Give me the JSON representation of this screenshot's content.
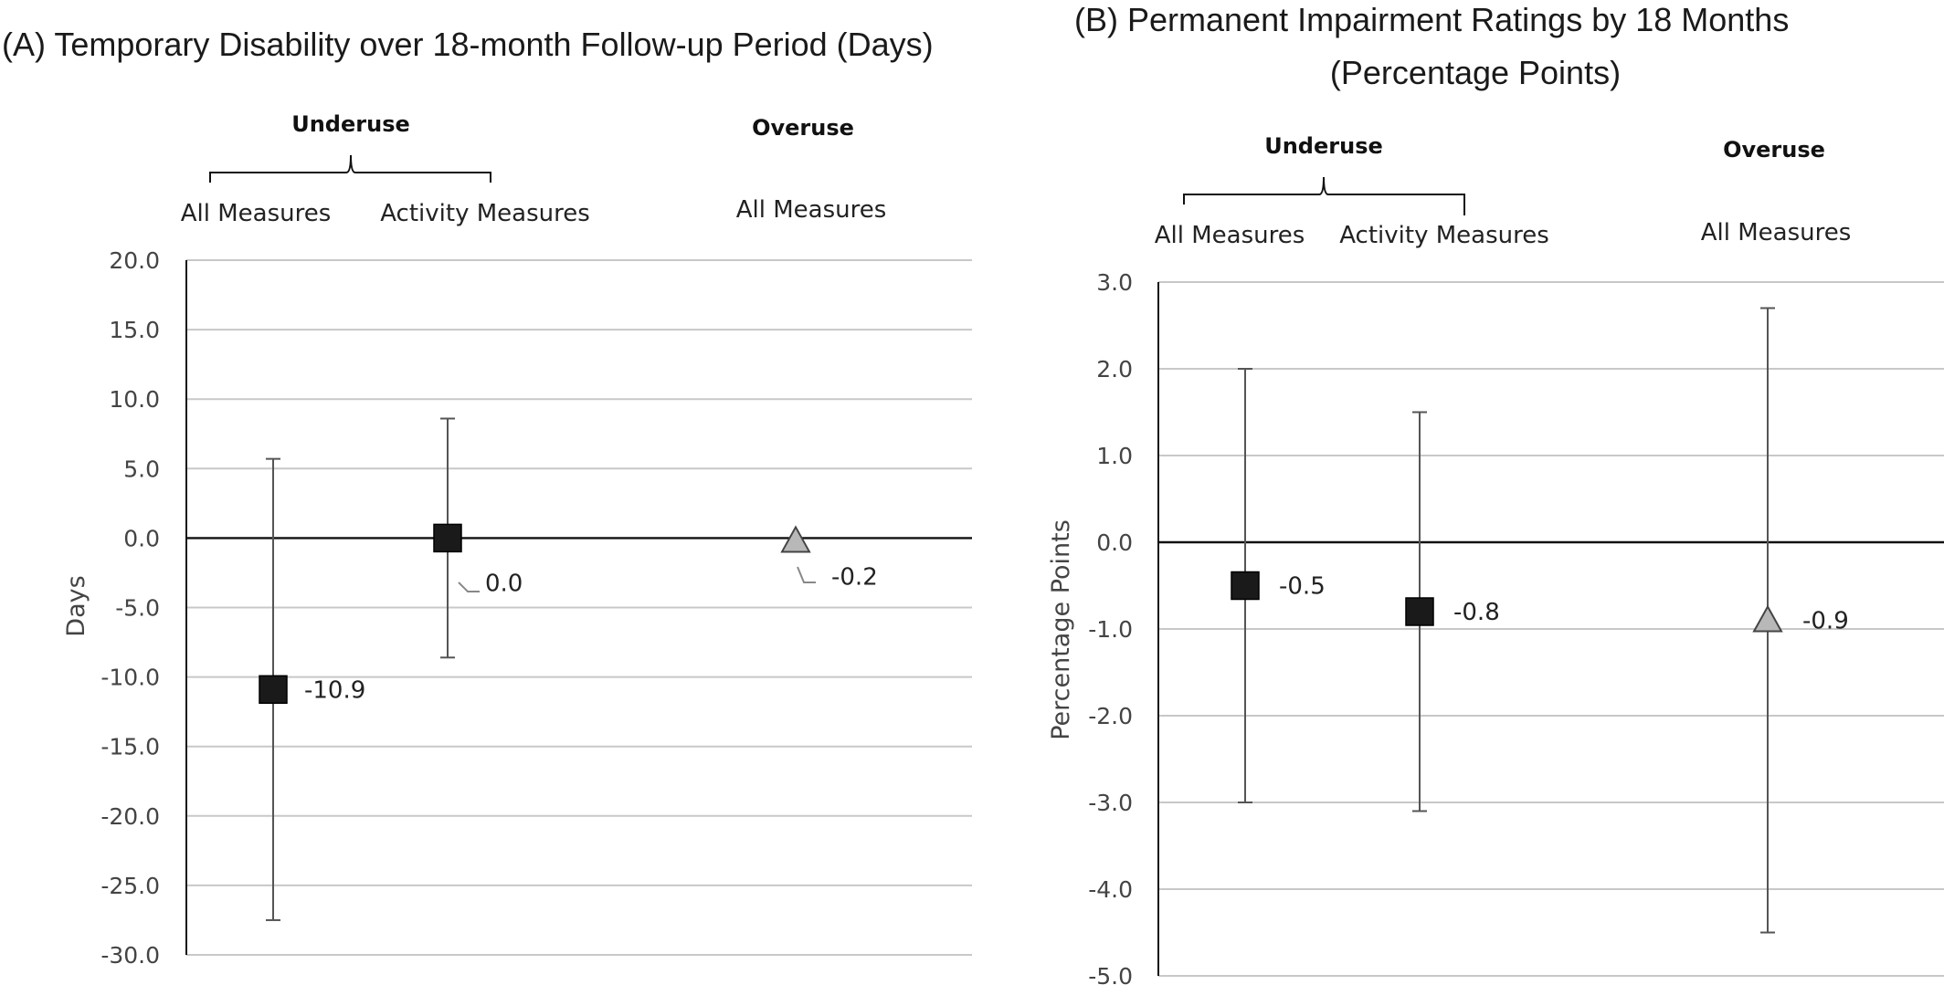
{
  "chart_data": [
    {
      "type": "scatter",
      "title": "(A) Temporary Disability over 18-month Follow-up Period (Days)",
      "ylabel": "Days",
      "ylim": [
        -30,
        20
      ],
      "yticks": [
        "20.0",
        "15.0",
        "10.0",
        "5.0",
        "0.0",
        "-5.0",
        "-10.0",
        "-15.0",
        "-20.0",
        "-25.0",
        "-30.0"
      ],
      "ytick_values": [
        20,
        15,
        10,
        5,
        0,
        -5,
        -10,
        -15,
        -20,
        -25,
        -30
      ],
      "grid": true,
      "groups": [
        {
          "label": "Underuse",
          "categories": [
            "All Measures",
            "Activity Measures"
          ]
        },
        {
          "label": "Overuse",
          "categories": [
            "All Measures"
          ]
        }
      ],
      "points": [
        {
          "category": "All Measures",
          "group": "Underuse",
          "value": -10.9,
          "ci_low": -27.5,
          "ci_high": 5.7,
          "label": "-10.9",
          "marker": "square"
        },
        {
          "category": "Activity Measures",
          "group": "Underuse",
          "value": 0.0,
          "ci_low": -8.6,
          "ci_high": 8.6,
          "label": "0.0",
          "marker": "square"
        },
        {
          "category": "All Measures",
          "group": "Overuse",
          "value": -0.2,
          "label": "-0.2",
          "marker": "triangle"
        }
      ]
    },
    {
      "type": "scatter",
      "title_line1": "(B)  Permanent Impairment Ratings by 18 Months",
      "title_line2": "(Percentage Points)",
      "ylabel": "Percentage Points",
      "ylim": [
        -5,
        3
      ],
      "yticks": [
        "3.0",
        "2.0",
        "1.0",
        "0.0",
        "-1.0",
        "-2.0",
        "-3.0",
        "-4.0",
        "-5.0"
      ],
      "ytick_values": [
        3,
        2,
        1,
        0,
        -1,
        -2,
        -3,
        -4,
        -5
      ],
      "grid": true,
      "groups": [
        {
          "label": "Underuse",
          "categories": [
            "All Measures",
            "Activity Measures"
          ]
        },
        {
          "label": "Overuse",
          "categories": [
            "All Measures"
          ]
        }
      ],
      "points": [
        {
          "category": "All Measures",
          "group": "Underuse",
          "value": -0.5,
          "ci_low": -3.0,
          "ci_high": 2.0,
          "label": "-0.5",
          "marker": "square"
        },
        {
          "category": "Activity Measures",
          "group": "Underuse",
          "value": -0.8,
          "ci_low": -3.1,
          "ci_high": 1.5,
          "label": "-0.8",
          "marker": "square"
        },
        {
          "category": "All Measures",
          "group": "Overuse",
          "value": -0.9,
          "ci_low": -4.5,
          "ci_high": 2.7,
          "label": "-0.9",
          "marker": "triangle"
        }
      ]
    }
  ],
  "colors": {
    "square": "#1a1a1a",
    "triangle": "#b8b8b8",
    "grid": "#c8c8c8",
    "whisker": "#555555"
  }
}
